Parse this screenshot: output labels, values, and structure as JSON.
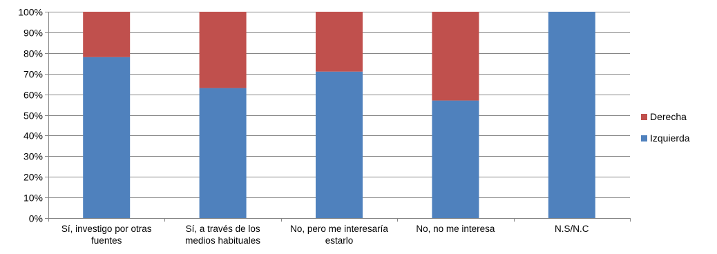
{
  "chart_data": {
    "type": "bar",
    "stacked": true,
    "percent_stacked": true,
    "categories": [
      [
        "Sí, investigo por otras",
        "fuentes"
      ],
      [
        "Sí, a través de los",
        "medios habituales"
      ],
      [
        "No, pero me interesaría",
        "estarlo"
      ],
      [
        "No, no me interesa"
      ],
      [
        "N.S/N.C"
      ]
    ],
    "series": [
      {
        "name": "Izquierda",
        "color": "#4F81BD",
        "values": [
          78,
          63,
          71,
          57,
          100
        ]
      },
      {
        "name": "Derecha",
        "color": "#C0504D",
        "values": [
          22,
          37,
          29,
          43,
          0
        ]
      }
    ],
    "y_ticks": [
      "0%",
      "10%",
      "20%",
      "30%",
      "40%",
      "50%",
      "60%",
      "70%",
      "80%",
      "90%",
      "100%"
    ],
    "ylim": [
      0,
      100
    ],
    "grid": true,
    "legend_position": "right",
    "legend_order": [
      "Derecha",
      "Izquierda"
    ],
    "title": "",
    "xlabel": "",
    "ylabel": ""
  }
}
